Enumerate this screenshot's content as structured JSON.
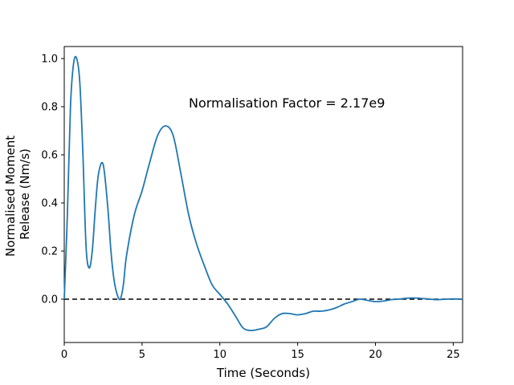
{
  "chart_data": {
    "type": "line",
    "title": "",
    "xlabel": "Time (Seconds)",
    "ylabel_lines": [
      "Normalised Moment",
      "Release (Nm/s)"
    ],
    "annotation": "Normalisation Factor = 2.17e9",
    "xlim": [
      0,
      25.6
    ],
    "ylim": [
      -0.18,
      1.05
    ],
    "x_ticks": [
      0,
      5,
      10,
      15,
      20,
      25
    ],
    "y_ticks": [
      0.0,
      0.2,
      0.4,
      0.6,
      0.8,
      1.0
    ],
    "y_tick_labels": [
      "0.0",
      "0.2",
      "0.4",
      "0.6",
      "0.8",
      "1.0"
    ],
    "grid": false,
    "reference_line": {
      "y": 0.0,
      "style": "dashed",
      "color": "#000000"
    },
    "series": [
      {
        "color": "#1f77b4",
        "x": [
          0.0,
          0.2,
          0.4,
          0.6,
          0.8,
          1.0,
          1.2,
          1.4,
          1.6,
          1.8,
          2.0,
          2.2,
          2.5,
          2.8,
          3.0,
          3.2,
          3.4,
          3.6,
          3.8,
          4.0,
          4.5,
          5.0,
          5.5,
          6.0,
          6.5,
          7.0,
          7.5,
          8.0,
          8.5,
          9.0,
          9.5,
          10.0,
          10.5,
          11.0,
          11.5,
          12.0,
          12.5,
          13.0,
          13.5,
          14.0,
          14.5,
          15.0,
          15.5,
          16.0,
          16.5,
          17.0,
          17.5,
          18.0,
          18.5,
          19.0,
          19.5,
          20.0,
          20.5,
          21.0,
          21.5,
          22.0,
          22.5,
          23.0,
          23.5,
          24.0,
          24.5,
          25.0,
          25.6
        ],
        "y": [
          0.0,
          0.35,
          0.8,
          0.98,
          1.0,
          0.9,
          0.6,
          0.22,
          0.13,
          0.2,
          0.38,
          0.52,
          0.56,
          0.38,
          0.2,
          0.08,
          0.02,
          0.0,
          0.06,
          0.18,
          0.35,
          0.45,
          0.57,
          0.68,
          0.72,
          0.68,
          0.52,
          0.35,
          0.23,
          0.14,
          0.06,
          0.02,
          -0.02,
          -0.07,
          -0.12,
          -0.13,
          -0.125,
          -0.115,
          -0.08,
          -0.06,
          -0.06,
          -0.065,
          -0.06,
          -0.05,
          -0.05,
          -0.045,
          -0.035,
          -0.02,
          -0.01,
          0.0,
          -0.005,
          -0.01,
          -0.008,
          -0.002,
          0.0,
          0.004,
          0.005,
          0.003,
          0.0,
          -0.002,
          0.0,
          0.001,
          0.0
        ]
      }
    ]
  }
}
